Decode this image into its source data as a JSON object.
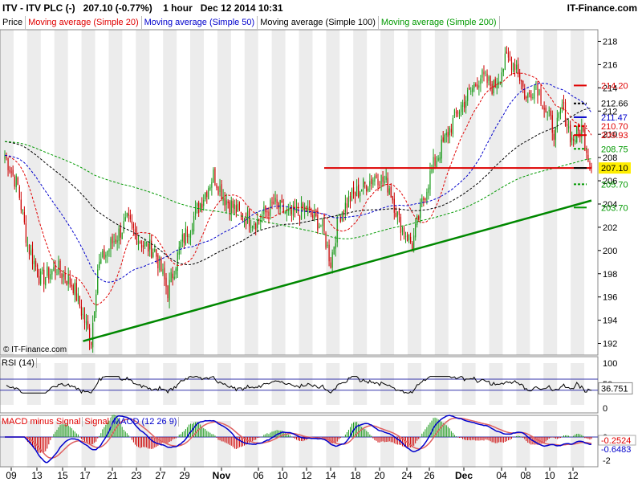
{
  "header": {
    "symbol": "ITV - ITV PLC (-)",
    "price": "207.10 (-0.77%)",
    "interval": "1 hour",
    "datetime": "Dec 12 2014 10:31",
    "brand": "IT-Finance.com"
  },
  "legend": [
    {
      "label": "Price",
      "color": "#000000"
    },
    {
      "label": "Moving average (Simple 20)",
      "color": "#e00000"
    },
    {
      "label": "Moving average (Simple 50)",
      "color": "#0000cc"
    },
    {
      "label": "Moving average (Simple 100)",
      "color": "#000000"
    },
    {
      "label": "Moving average (Simple 200)",
      "color": "#009900"
    }
  ],
  "watermark": "© IT-Finance.com",
  "rsi_panel": {
    "label": "RSI (14)",
    "value": "36.751",
    "upper": "100",
    "mid": "50",
    "lower": "0"
  },
  "macd_panel": {
    "labels": [
      {
        "text": "MACD minus Signal",
        "color": "#e00000"
      },
      {
        "text": "Signal",
        "color": "#e00000"
      },
      {
        "text": "MACD (12 26 9)",
        "color": "#0000cc"
      }
    ],
    "value1": "-0.2524",
    "value2": "-0.6483",
    "tick_top": "0",
    "tick_bottom": "-2"
  },
  "x_axis": {
    "labels": [
      "09",
      "13",
      "15",
      "17",
      "21",
      "23",
      "27",
      "29",
      "Nov",
      "06",
      "10",
      "12",
      "14",
      "18",
      "20",
      "24",
      "26",
      "Dec",
      "04",
      "08",
      "10",
      "12"
    ]
  },
  "chart_data": {
    "type": "candlestick",
    "ylim": [
      191,
      219
    ],
    "yticks": [
      192,
      194,
      196,
      198,
      200,
      202,
      204,
      206,
      208,
      210,
      212,
      214,
      216,
      218
    ],
    "price_labels": [
      {
        "value": "214.20",
        "color": "#e00000",
        "level": 214.2
      },
      {
        "value": "212.66",
        "color": "#000000",
        "level": 212.66
      },
      {
        "value": "211.47",
        "color": "#0000cc",
        "level": 211.47
      },
      {
        "value": "210.70",
        "color": "#e00000",
        "level": 210.7
      },
      {
        "value": "209.93",
        "color": "#e00000",
        "level": 209.93
      },
      {
        "value": "208.75",
        "color": "#009900",
        "level": 208.75
      },
      {
        "value": "207.10",
        "color": "#000000",
        "level": 207.1,
        "highlight": "#ffee00"
      },
      {
        "value": "205.70",
        "color": "#009900",
        "level": 205.7
      },
      {
        "value": "203.70",
        "color": "#009900",
        "level": 203.7
      }
    ],
    "keypoints": [
      {
        "i": 0,
        "p": 208.2
      },
      {
        "i": 8,
        "p": 205.5
      },
      {
        "i": 14,
        "p": 200.5
      },
      {
        "i": 22,
        "p": 197.5
      },
      {
        "i": 32,
        "p": 198.5
      },
      {
        "i": 42,
        "p": 197.0
      },
      {
        "i": 50,
        "p": 193.5
      },
      {
        "i": 53,
        "p": 192.3
      },
      {
        "i": 57,
        "p": 198.5
      },
      {
        "i": 65,
        "p": 200.5
      },
      {
        "i": 75,
        "p": 202.5
      },
      {
        "i": 85,
        "p": 200.5
      },
      {
        "i": 92,
        "p": 200.0
      },
      {
        "i": 100,
        "p": 196.5
      },
      {
        "i": 108,
        "p": 200.5
      },
      {
        "i": 118,
        "p": 203.5
      },
      {
        "i": 128,
        "p": 206.5
      },
      {
        "i": 135,
        "p": 204.5
      },
      {
        "i": 145,
        "p": 203.0
      },
      {
        "i": 155,
        "p": 202.5
      },
      {
        "i": 165,
        "p": 204.0
      },
      {
        "i": 175,
        "p": 203.0
      },
      {
        "i": 185,
        "p": 203.5
      },
      {
        "i": 195,
        "p": 202.0
      },
      {
        "i": 200,
        "p": 199.0
      },
      {
        "i": 205,
        "p": 203.0
      },
      {
        "i": 212,
        "p": 204.5
      },
      {
        "i": 220,
        "p": 205.5
      },
      {
        "i": 228,
        "p": 206.5
      },
      {
        "i": 236,
        "p": 205.5
      },
      {
        "i": 242,
        "p": 202.5
      },
      {
        "i": 250,
        "p": 200.5
      },
      {
        "i": 256,
        "p": 204.0
      },
      {
        "i": 262,
        "p": 207.0
      },
      {
        "i": 270,
        "p": 209.5
      },
      {
        "i": 278,
        "p": 212.0
      },
      {
        "i": 285,
        "p": 213.5
      },
      {
        "i": 292,
        "p": 215.0
      },
      {
        "i": 300,
        "p": 214.0
      },
      {
        "i": 308,
        "p": 216.5
      },
      {
        "i": 314,
        "p": 216.0
      },
      {
        "i": 320,
        "p": 213.0
      },
      {
        "i": 326,
        "p": 214.5
      },
      {
        "i": 332,
        "p": 212.0
      },
      {
        "i": 338,
        "p": 210.0
      },
      {
        "i": 342,
        "p": 212.5
      },
      {
        "i": 348,
        "p": 209.5
      },
      {
        "i": 354,
        "p": 210.5
      },
      {
        "i": 360,
        "p": 207.1
      }
    ],
    "bars": 361,
    "moving_averages": [
      {
        "name": "Simple 20",
        "period": 20,
        "color": "#e00000"
      },
      {
        "name": "Simple 50",
        "period": 50,
        "color": "#0000cc"
      },
      {
        "name": "Simple 100",
        "period": 100,
        "color": "#000000"
      },
      {
        "name": "Simple 200",
        "period": 200,
        "color": "#009900"
      }
    ],
    "support_line": {
      "color": "#008800",
      "from": {
        "i": 48,
        "p": 192.2
      },
      "to": {
        "i": 360,
        "p": 204.3
      }
    },
    "resistance_line": {
      "color": "#dd0000",
      "level": 207.1,
      "from_i": 196,
      "to_i": 360
    },
    "rsi_levels": {
      "upper": 70,
      "lower": 30
    }
  }
}
